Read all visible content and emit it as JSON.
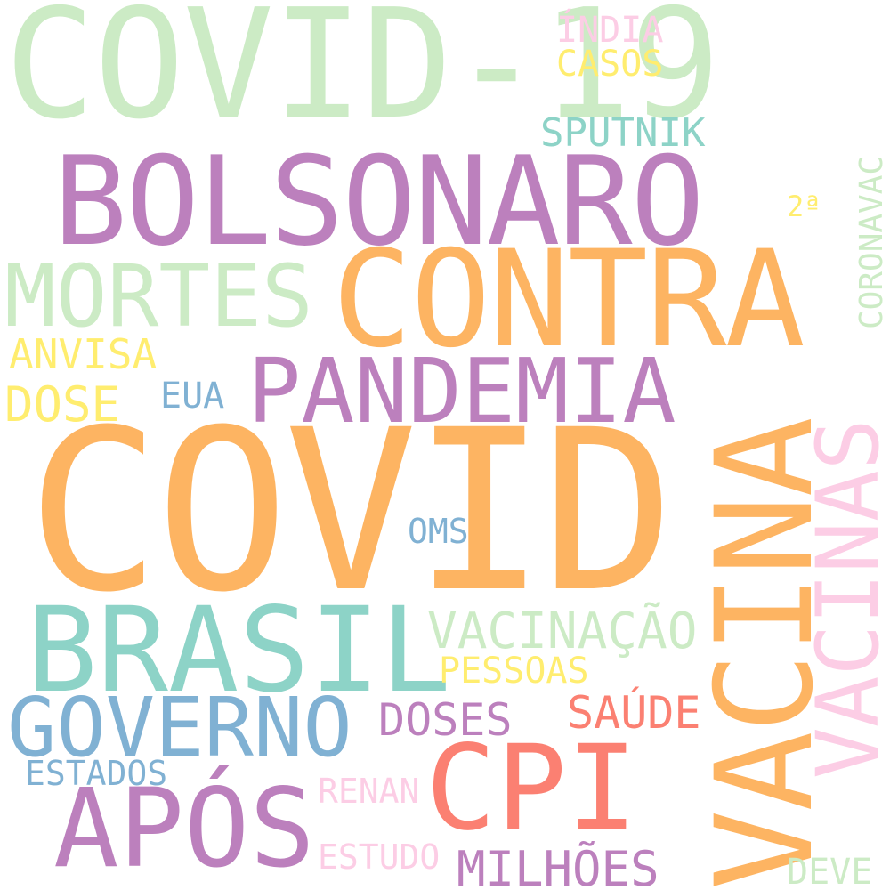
{
  "words": {
    "covid": {
      "text": "COVID",
      "color": "#fdb462"
    },
    "covid19": {
      "text": "COVID-19",
      "color": "#ccebc5"
    },
    "bolsonaro": {
      "text": "BOLSONARO",
      "color": "#bc80bd"
    },
    "contra": {
      "text": "CONTRA",
      "color": "#fdb462"
    },
    "vacina": {
      "text": "VACINA",
      "color": "#fdb462"
    },
    "brasil": {
      "text": "BRASIL",
      "color": "#8dd3c7"
    },
    "pandemia": {
      "text": "PANDEMIA",
      "color": "#bc80bd"
    },
    "mortes": {
      "text": "MORTES",
      "color": "#ccebc5"
    },
    "vacinas": {
      "text": "VACINAS",
      "color": "#fccde5"
    },
    "cpi": {
      "text": "CPI",
      "color": "#fb8072"
    },
    "apos": {
      "text": "APÓS",
      "color": "#bc80bd"
    },
    "governo": {
      "text": "GOVERNO",
      "color": "#80b1d3"
    },
    "vacinacao": {
      "text": "VACINAÇÃO",
      "color": "#ccebc5"
    },
    "sputnik": {
      "text": "SPUTNIK",
      "color": "#8dd3c7"
    },
    "india": {
      "text": "ÍNDIA",
      "color": "#fccde5"
    },
    "casos": {
      "text": "CASOS",
      "color": "#ffed6f"
    },
    "coronavac": {
      "text": "CORONAVAC",
      "color": "#ccebc5"
    },
    "segunda": {
      "text": "2ª",
      "color": "#ffed6f"
    },
    "anvisa": {
      "text": "ANVISA",
      "color": "#ffed6f"
    },
    "dose": {
      "text": "DOSE",
      "color": "#ffed6f"
    },
    "eua": {
      "text": "EUA",
      "color": "#80b1d3"
    },
    "oms": {
      "text": "OMS",
      "color": "#80b1d3"
    },
    "pessoas": {
      "text": "PESSOAS",
      "color": "#ffed6f"
    },
    "saude": {
      "text": "SAÚDE",
      "color": "#fb8072"
    },
    "doses": {
      "text": "DOSES",
      "color": "#bc80bd"
    },
    "estados": {
      "text": "ESTADOS",
      "color": "#80b1d3"
    },
    "renan": {
      "text": "RENAN",
      "color": "#fccde5"
    },
    "estudo": {
      "text": "ESTUDO",
      "color": "#fccde5"
    },
    "milhoes": {
      "text": "MILHÕES",
      "color": "#bc80bd"
    },
    "deve": {
      "text": "DEVE",
      "color": "#ccebc5"
    }
  }
}
